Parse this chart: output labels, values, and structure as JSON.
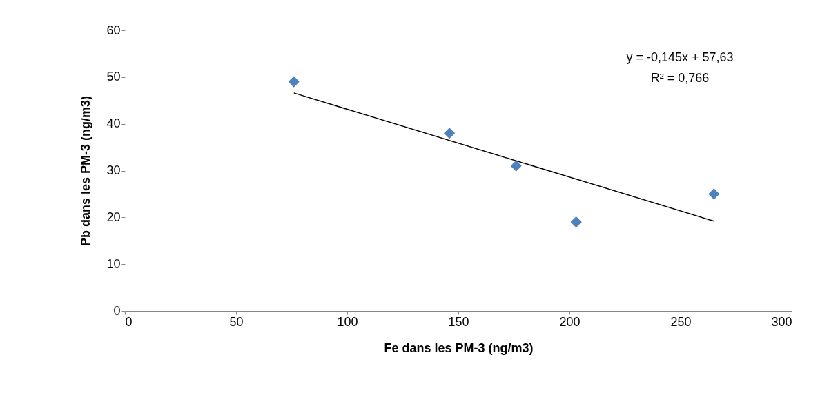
{
  "chart_data": {
    "type": "scatter",
    "xlabel": "Fe dans les PM-3 (ng/m3)",
    "ylabel": "Pb  dans les PM-3 (ng/m3)",
    "xlim": [
      0,
      300
    ],
    "xticks": [
      0,
      50,
      100,
      150,
      200,
      250,
      300
    ],
    "ylim": [
      0,
      60
    ],
    "yticks": [
      0,
      10,
      20,
      30,
      40,
      50,
      60
    ],
    "grid": false,
    "legend": false,
    "marker": "diamond",
    "series": [
      {
        "color": "#4f81bd",
        "x": [
          76,
          146,
          176,
          203,
          265
        ],
        "values": [
          49,
          38,
          31,
          19,
          25
        ]
      },
      {
        "type": "line",
        "color": "#000000",
        "marker": "none",
        "line_style": "solid",
        "x": [
          76,
          265
        ],
        "values": [
          46.6,
          19.2
        ]
      }
    ],
    "annotations": [
      "y = -0,145x + 57,63",
      "R² = 0,766"
    ]
  }
}
